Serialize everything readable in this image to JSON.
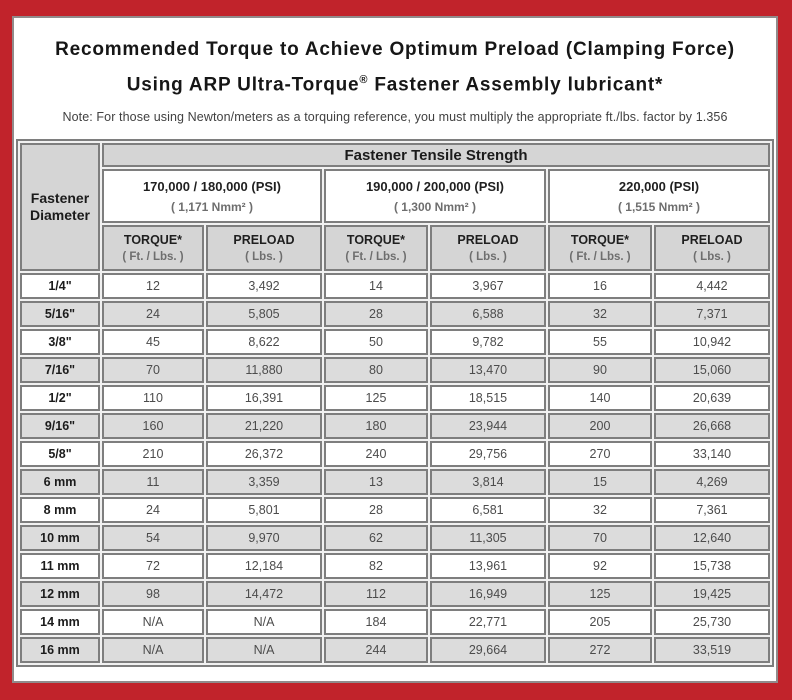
{
  "title": {
    "line1": "Recommended Torque to Achieve Optimum Preload (Clamping Force)",
    "line2_pre": "Using ARP Ultra-Torque",
    "line2_sup": "®",
    "line2_post": " Fastener Assembly lubricant*"
  },
  "note": "Note: For those using Newton/meters as a torquing reference, you must multiply the appropriate ft./lbs. factor by 1.356",
  "table": {
    "tensile_header": "Fastener Tensile Strength",
    "diameter_header": "Fastener Diameter",
    "groups": [
      {
        "psi": "170,000 / 180,000 (PSI)",
        "nmm": "( 1,171 Nmm² )"
      },
      {
        "psi": "190,000 / 200,000 (PSI)",
        "nmm": "( 1,300 Nmm² )"
      },
      {
        "psi": "220,000 (PSI)",
        "nmm": "( 1,515 Nmm² )"
      }
    ],
    "torque_label": "TORQUE*",
    "torque_sub": "( Ft. / Lbs. )",
    "preload_label": "PRELOAD",
    "preload_sub": "( Lbs. )",
    "rows": [
      {
        "d": "1/4\"",
        "v": [
          "12",
          "3,492",
          "14",
          "3,967",
          "16",
          "4,442"
        ]
      },
      {
        "d": "5/16\"",
        "v": [
          "24",
          "5,805",
          "28",
          "6,588",
          "32",
          "7,371"
        ]
      },
      {
        "d": "3/8\"",
        "v": [
          "45",
          "8,622",
          "50",
          "9,782",
          "55",
          "10,942"
        ]
      },
      {
        "d": "7/16\"",
        "v": [
          "70",
          "11,880",
          "80",
          "13,470",
          "90",
          "15,060"
        ]
      },
      {
        "d": "1/2\"",
        "v": [
          "110",
          "16,391",
          "125",
          "18,515",
          "140",
          "20,639"
        ]
      },
      {
        "d": "9/16\"",
        "v": [
          "160",
          "21,220",
          "180",
          "23,944",
          "200",
          "26,668"
        ]
      },
      {
        "d": "5/8\"",
        "v": [
          "210",
          "26,372",
          "240",
          "29,756",
          "270",
          "33,140"
        ]
      },
      {
        "d": "6 mm",
        "v": [
          "11",
          "3,359",
          "13",
          "3,814",
          "15",
          "4,269"
        ]
      },
      {
        "d": "8 mm",
        "v": [
          "24",
          "5,801",
          "28",
          "6,581",
          "32",
          "7,361"
        ]
      },
      {
        "d": "10 mm",
        "v": [
          "54",
          "9,970",
          "62",
          "11,305",
          "70",
          "12,640"
        ]
      },
      {
        "d": "11 mm",
        "v": [
          "72",
          "12,184",
          "82",
          "13,961",
          "92",
          "15,738"
        ]
      },
      {
        "d": "12 mm",
        "v": [
          "98",
          "14,472",
          "112",
          "16,949",
          "125",
          "19,425"
        ]
      },
      {
        "d": "14 mm",
        "v": [
          "N/A",
          "N/A",
          "184",
          "22,771",
          "205",
          "25,730"
        ]
      },
      {
        "d": "16 mm",
        "v": [
          "N/A",
          "N/A",
          "244",
          "29,664",
          "272",
          "33,519"
        ]
      }
    ]
  },
  "colors": {
    "frame_red": "#c1232b",
    "cell_border": "#7e7e7e",
    "header_gray": "#d5d5d5",
    "alt_row_gray": "#dcdcdc"
  }
}
